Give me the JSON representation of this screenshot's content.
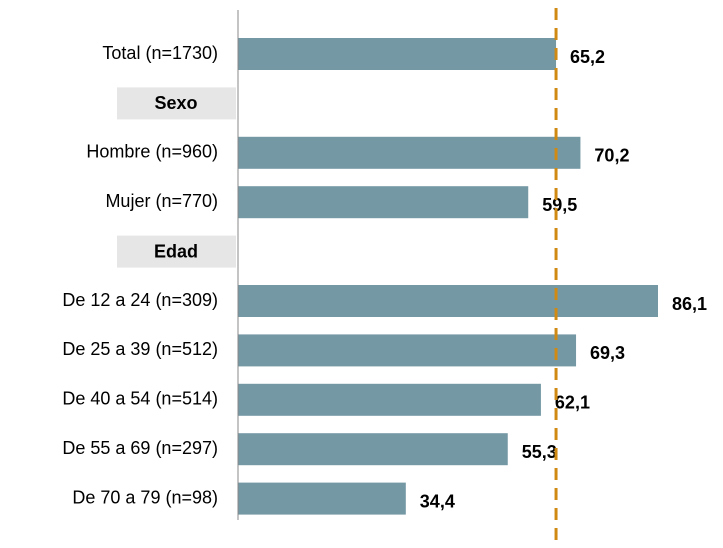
{
  "chart_data": {
    "type": "bar",
    "orientation": "horizontal",
    "categories": [
      "Total (n=1730)",
      "Sexo",
      "Hombre (n=960)",
      "Mujer (n=770)",
      "Edad",
      "De 12 a 24 (n=309)",
      "De 25 a 39 (n=512)",
      "De 40 a 54 (n=514)",
      "De 55 a 69 (n=297)",
      "De 70 a 79 (n=98)"
    ],
    "values": [
      65.2,
      null,
      70.2,
      59.5,
      null,
      86.1,
      69.3,
      62.1,
      55.3,
      34.4
    ],
    "value_labels": [
      "65,2",
      null,
      "70,2",
      "59,5",
      null,
      "86,1",
      "69,3",
      "62,1",
      "55,3",
      "34,4"
    ],
    "color": "#7498a4",
    "header_color": "#e6e6e6",
    "reference_line": {
      "value": 65.2,
      "color": "#d08a14"
    },
    "xlim": [
      0,
      100
    ]
  }
}
